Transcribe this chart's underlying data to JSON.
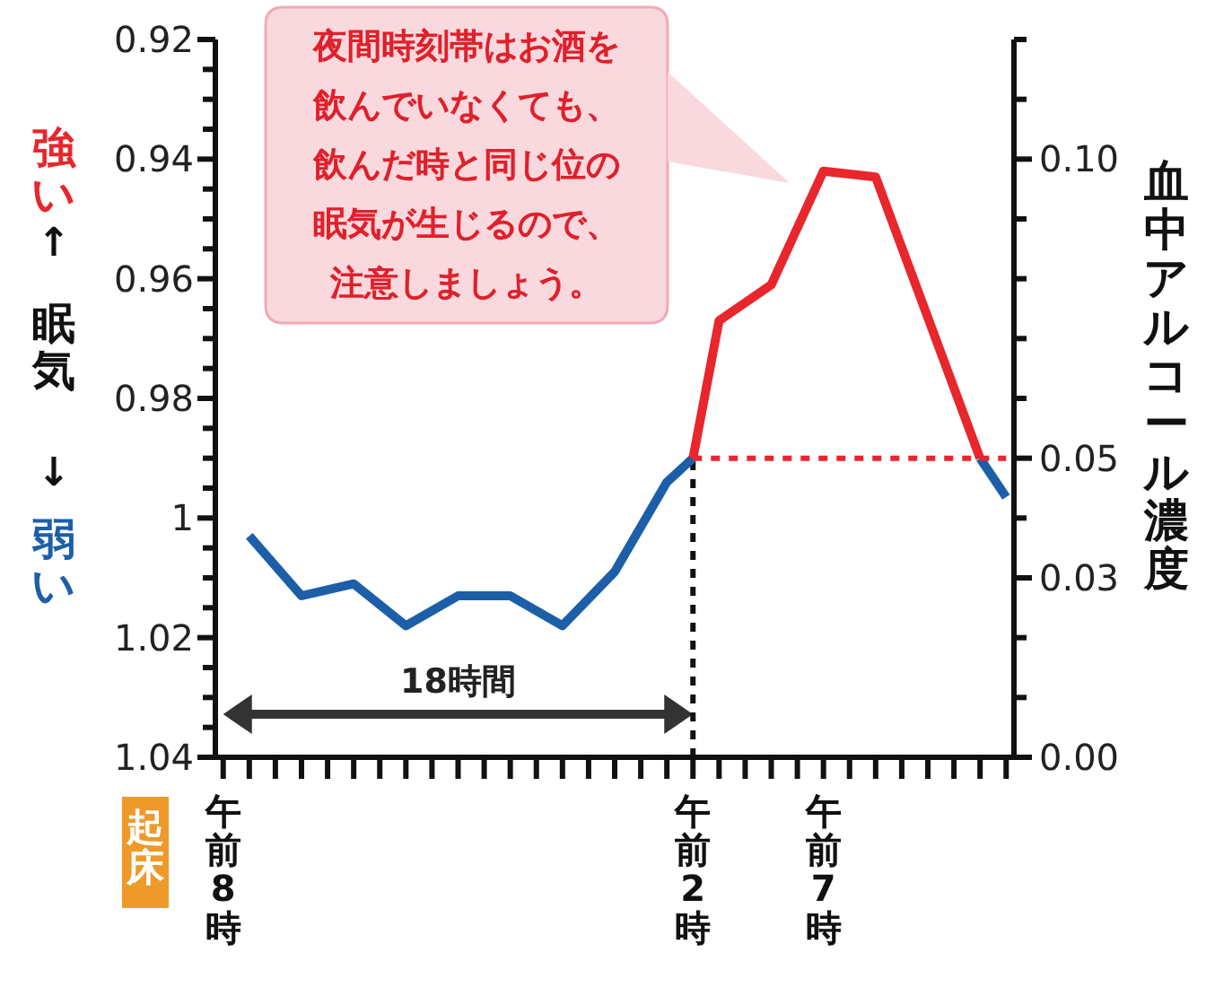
{
  "chart_data": {
    "type": "line",
    "ylabel": "眠気",
    "y2label": "血中アルコール濃度",
    "annotations": [
      "強い",
      "↑",
      "↓",
      "弱い",
      "18時間",
      "夜間時刻帯はお酒を飲んでいなくても、飲んだ時と同じ位の眠気が生じるので、注意しましょう。",
      "起床"
    ],
    "categories": [
      "午前8時",
      null,
      null,
      null,
      null,
      null,
      null,
      null,
      null,
      null,
      null,
      null,
      null,
      null,
      null,
      null,
      null,
      null,
      "午前2時",
      null,
      null,
      null,
      null,
      "午前7時",
      null,
      null,
      null,
      null,
      null,
      null,
      null
    ],
    "ylim": [
      1.04,
      0.92
    ],
    "yticks": [
      0.92,
      {
        "value": 0.925,
        "label": null
      },
      {
        "value": 0.93,
        "label": null
      },
      {
        "value": 0.935,
        "label": null
      },
      0.94,
      {
        "value": 0.945,
        "label": null
      },
      {
        "value": 0.95,
        "label": null
      },
      {
        "value": 0.955,
        "label": null
      },
      0.96,
      {
        "value": 0.965,
        "label": null
      },
      {
        "value": 0.97,
        "label": null
      },
      {
        "value": 0.975,
        "label": null
      },
      0.98,
      {
        "value": 0.985,
        "label": null
      },
      {
        "value": 0.99,
        "label": null
      },
      {
        "value": 0.995,
        "label": null
      },
      1,
      {
        "value": 1.005,
        "label": null
      },
      {
        "value": 1.01,
        "label": null
      },
      {
        "value": 1.015,
        "label": null
      },
      1.02,
      {
        "value": 1.025,
        "label": null
      },
      {
        "value": 1.03,
        "label": null
      },
      {
        "value": 1.035,
        "label": null
      },
      1.04
    ],
    "y2lim": [
      0,
      0.12
    ],
    "y2ticks": [
      {
        "value": 0,
        "label": "0.00"
      },
      {
        "value": 0.01,
        "label": null
      },
      {
        "value": 0.02,
        "label": null
      },
      0.03,
      {
        "value": 0.04,
        "label": null
      },
      0.05,
      {
        "value": 0.06,
        "label": null
      },
      {
        "value": 0.07,
        "label": null
      },
      {
        "value": 0.08,
        "label": null
      },
      {
        "value": 0.09,
        "label": null
      },
      {
        "value": 0.1,
        "label": "0.10"
      },
      {
        "value": 0.11,
        "label": null
      },
      {
        "value": 0.12,
        "label": null
      }
    ],
    "ref_lines": [
      {
        "axis": "x",
        "value": "午前2時",
        "color": "#111111",
        "line_style": "dotted"
      }
    ],
    "series": [
      {
        "color": "#1c5fa8",
        "values": [
          null,
          1.003,
          null,
          1.013,
          null,
          1.011,
          null,
          1.018,
          null,
          1.013,
          null,
          1.013,
          null,
          1.018,
          null,
          1.009,
          null,
          0.994,
          0.99,
          null,
          null,
          null,
          null,
          null,
          null,
          null,
          null,
          null,
          null,
          null,
          null
        ]
      },
      {
        "color": "#e8262c",
        "values": [
          null,
          null,
          null,
          null,
          null,
          null,
          null,
          null,
          null,
          null,
          null,
          null,
          null,
          null,
          null,
          null,
          null,
          null,
          0.99,
          0.967,
          null,
          0.961,
          null,
          0.942,
          null,
          0.943,
          null,
          null,
          null,
          0.99,
          null
        ]
      },
      {
        "color": "#1c5fa8",
        "values": [
          null,
          null,
          null,
          null,
          null,
          null,
          null,
          null,
          null,
          null,
          null,
          null,
          null,
          null,
          null,
          null,
          null,
          null,
          null,
          null,
          null,
          null,
          null,
          null,
          null,
          null,
          null,
          null,
          null,
          0.99,
          0.9965
        ]
      },
      {
        "color": "#e8262c",
        "axis": "y2",
        "line_style": "dotted",
        "values": [
          null,
          null,
          null,
          null,
          null,
          null,
          null,
          null,
          null,
          null,
          null,
          null,
          null,
          null,
          null,
          null,
          null,
          null,
          0.05,
          null,
          null,
          null,
          null,
          null,
          null,
          null,
          null,
          null,
          null,
          null,
          0.05
        ]
      }
    ]
  }
}
